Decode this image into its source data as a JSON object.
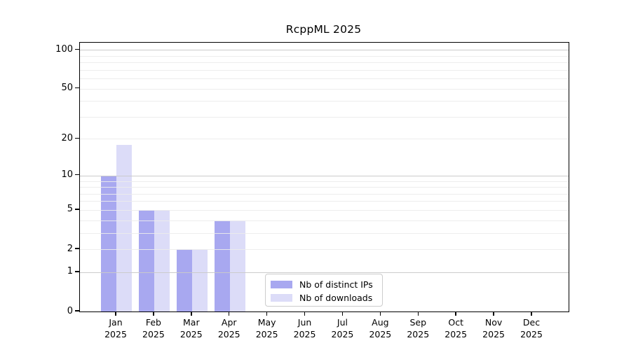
{
  "chart_data": {
    "type": "bar",
    "title": "RcppML 2025",
    "categories": [
      "Jan 2025",
      "Feb 2025",
      "Mar 2025",
      "Apr 2025",
      "May 2025",
      "Jun 2025",
      "Jul 2025",
      "Aug 2025",
      "Sep 2025",
      "Oct 2025",
      "Nov 2025",
      "Dec 2025"
    ],
    "series": [
      {
        "name": "Nb of distinct IPs",
        "color": "#a8a8f0",
        "values": [
          10,
          5,
          2,
          4,
          0,
          0,
          0,
          0,
          0,
          0,
          0,
          0
        ]
      },
      {
        "name": "Nb of downloads",
        "color": "#dcdcf8",
        "values": [
          18,
          5,
          2,
          4,
          0,
          0,
          0,
          0,
          0,
          0,
          0,
          0
        ]
      }
    ],
    "y_axis": {
      "scale": "log1p",
      "ticks": [
        0,
        1,
        2,
        5,
        10,
        20,
        50,
        100
      ],
      "major_gridlines": [
        1,
        10,
        100
      ],
      "minor_gridlines": [
        2,
        3,
        4,
        5,
        6,
        7,
        8,
        9,
        20,
        30,
        40,
        50,
        60,
        70,
        80,
        90
      ],
      "bottom": 0,
      "top": 113.6
    },
    "legend": {
      "position": "lower center",
      "entries": [
        "Nb of distinct IPs",
        "Nb of downloads"
      ]
    },
    "grid": true
  },
  "colors": {
    "bar_distinct_ips": "#a8a8f0",
    "bar_downloads": "#dcdcf8",
    "major_grid": "#c9c9c9",
    "minor_grid": "#ececec",
    "axis": "#000000",
    "background": "#ffffff",
    "text": "#000000"
  }
}
